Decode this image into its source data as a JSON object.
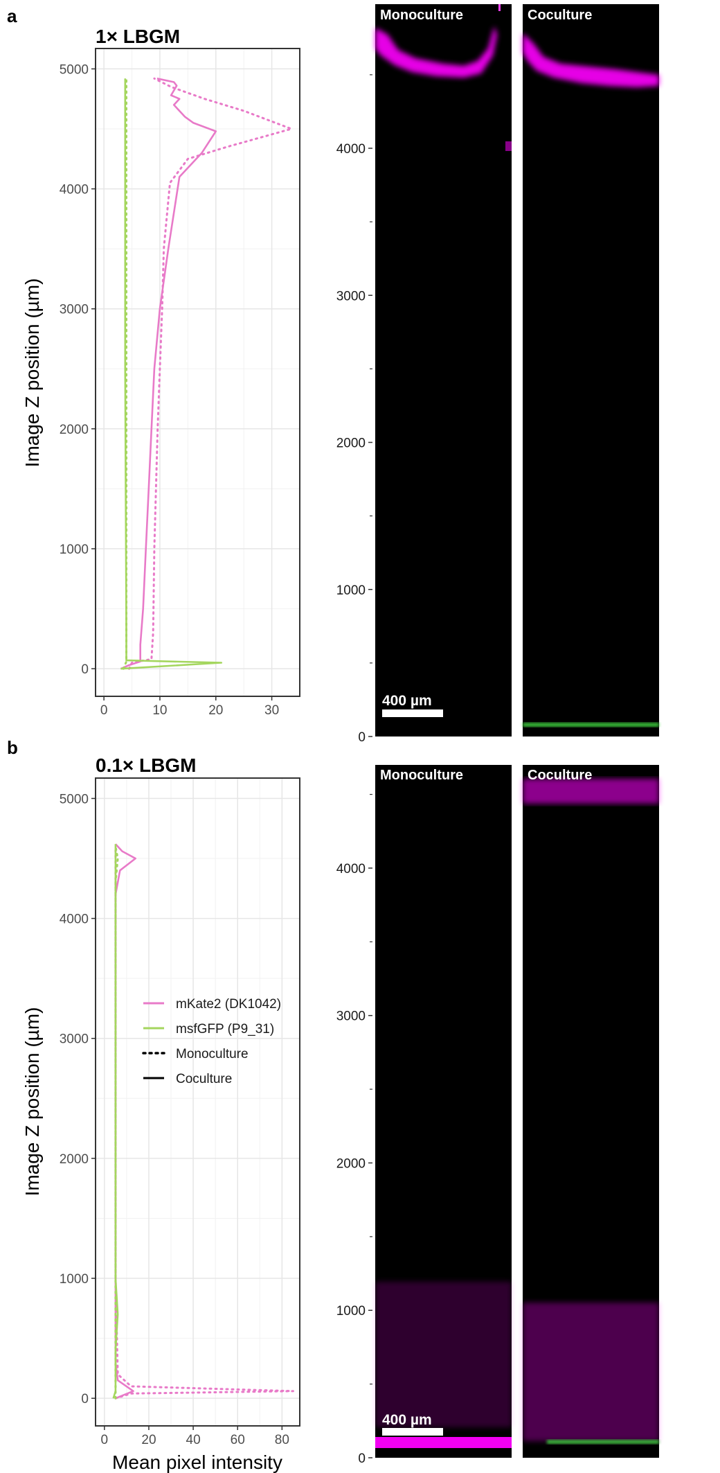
{
  "panel_a": {
    "letter": "a",
    "image_labels": [
      "Monoculture",
      "Coculture"
    ],
    "scale_bar": "400 µm"
  },
  "panel_b": {
    "letter": "b",
    "image_labels": [
      "Monoculture",
      "Coculture"
    ],
    "scale_bar": "400 µm"
  },
  "chart_data": [
    {
      "type": "line",
      "panel": "a",
      "title": "1× LBGM",
      "xlabel": "",
      "ylabel": "Image Z position (µm)",
      "xlim": [
        -1.5,
        35
      ],
      "ylim": [
        -230,
        5170
      ],
      "xticks": [
        0,
        10,
        20,
        30
      ],
      "yticks": [
        0,
        1000,
        2000,
        3000,
        4000,
        5000
      ],
      "grid": true,
      "series": [
        {
          "channel": "mKate2",
          "condition": "Monoculture",
          "color": "#e87ac8",
          "dash": "dotted",
          "x": [
            4.5,
            5,
            8.5,
            8.8,
            9.0,
            9.3,
            9.6,
            10.0,
            10.4,
            10.7,
            11.8,
            15,
            22,
            33.5,
            25,
            18,
            15,
            12,
            9
          ],
          "y": [
            0,
            50,
            80,
            300,
            1000,
            1500,
            2000,
            2500,
            3000,
            3500,
            4050,
            4250,
            4350,
            4500,
            4650,
            4750,
            4800,
            4850,
            4920
          ]
        },
        {
          "channel": "mKate2",
          "condition": "Coculture",
          "color": "#e87ac8",
          "dash": "solid",
          "x": [
            3.0,
            4.5,
            6.5,
            6.5,
            7.0,
            7.5,
            8.0,
            8.5,
            9.0,
            10.0,
            11.5,
            13.5,
            17.5,
            20.0,
            16.0,
            14.5,
            12.5,
            13.5,
            12.0,
            13.0,
            12.5,
            9.5
          ],
          "y": [
            0,
            30,
            60,
            200,
            500,
            1000,
            1500,
            2000,
            2500,
            3000,
            3500,
            4100,
            4300,
            4480,
            4550,
            4600,
            4700,
            4750,
            4780,
            4860,
            4890,
            4920
          ]
        },
        {
          "channel": "msfGFP",
          "condition": "Monoculture",
          "color": "#a4d65e",
          "dash": "dotted",
          "x": [
            3.5,
            4.0,
            4.0,
            4.0,
            4.0
          ],
          "y": [
            0,
            60,
            500,
            2500,
            4920
          ]
        },
        {
          "channel": "msfGFP",
          "condition": "Coculture",
          "color": "#a4d65e",
          "dash": "solid",
          "x": [
            3.0,
            21.0,
            4.0,
            4.0,
            3.8,
            3.8
          ],
          "y": [
            0,
            50,
            70,
            300,
            2500,
            4920
          ]
        }
      ]
    },
    {
      "type": "line",
      "panel": "b",
      "title": "0.1× LBGM",
      "xlabel": "Mean pixel intensity",
      "ylabel": "Image Z position (µm)",
      "xlim": [
        -4,
        88
      ],
      "ylim": [
        -230,
        5170
      ],
      "xticks": [
        0,
        20,
        40,
        60,
        80
      ],
      "yticks": [
        0,
        1000,
        2000,
        3000,
        4000,
        5000
      ],
      "grid": true,
      "legend": {
        "placement": "center-left",
        "entries": [
          {
            "label": "mKate2 (DK1042)",
            "color": "#e87ac8",
            "dash": "solid"
          },
          {
            "label": "msfGFP (P9_31)",
            "color": "#a4d65e",
            "dash": "solid"
          },
          {
            "label": "Monoculture",
            "color": "#000000",
            "dash": "dotted"
          },
          {
            "label": "Coculture",
            "color": "#000000",
            "dash": "solid"
          }
        ]
      },
      "series": [
        {
          "channel": "mKate2",
          "condition": "Monoculture",
          "color": "#e87ac8",
          "dash": "dotted",
          "x": [
            5,
            12,
            85,
            12,
            6,
            5,
            5,
            5,
            5
          ],
          "y": [
            0,
            40,
            60,
            100,
            200,
            1000,
            3000,
            4300,
            4600
          ]
        },
        {
          "channel": "mKate2",
          "condition": "Coculture",
          "color": "#e87ac8",
          "dash": "solid",
          "x": [
            5,
            13,
            6,
            5,
            5,
            5,
            5,
            7,
            14,
            8,
            5
          ],
          "y": [
            0,
            60,
            150,
            300,
            1000,
            3000,
            4200,
            4400,
            4500,
            4560,
            4620
          ]
        },
        {
          "channel": "msfGFP",
          "condition": "Monoculture",
          "color": "#a4d65e",
          "dash": "dotted",
          "x": [
            5,
            5,
            5,
            5,
            6,
            5
          ],
          "y": [
            0,
            500,
            2500,
            4300,
            4500,
            4600
          ]
        },
        {
          "channel": "msfGFP",
          "condition": "Coculture",
          "color": "#a4d65e",
          "dash": "solid",
          "x": [
            4,
            5,
            5,
            6,
            5,
            5,
            5
          ],
          "y": [
            0,
            60,
            400,
            700,
            1000,
            3000,
            4620
          ]
        }
      ]
    },
    {
      "type": "image-axis",
      "panel": "a",
      "yticks": [
        0,
        1000,
        2000,
        3000,
        4000
      ],
      "ylim": [
        0,
        4980
      ]
    },
    {
      "type": "image-axis",
      "panel": "b",
      "yticks": [
        0,
        1000,
        2000,
        3000,
        4000
      ],
      "ylim": [
        0,
        4700
      ]
    }
  ]
}
